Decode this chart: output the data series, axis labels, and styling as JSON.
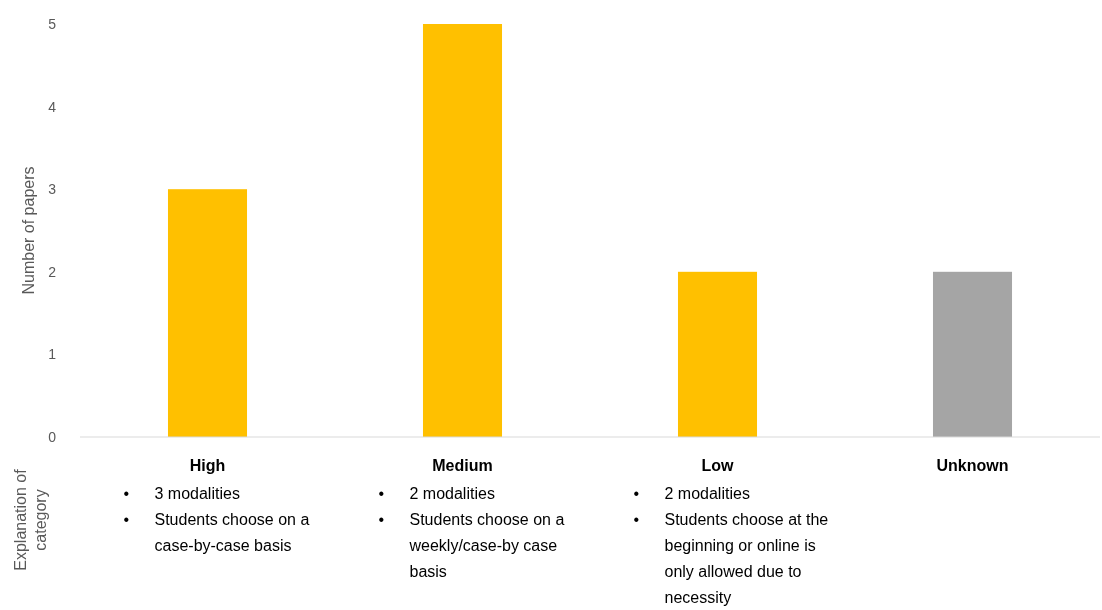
{
  "chart_data": {
    "type": "bar",
    "ylabel": "Number of papers",
    "categories": [
      "High",
      "Medium",
      "Low",
      "Unknown"
    ],
    "values": [
      3,
      5,
      2,
      2
    ],
    "colors": [
      "#ffc000",
      "#ffc000",
      "#ffc000",
      "#a5a5a5"
    ],
    "ylim": [
      0,
      5
    ],
    "yticks": [
      0,
      1,
      2,
      3,
      4,
      5
    ],
    "grid": false,
    "annotations": [
      "Explanation of category",
      "• 3 modalities",
      "• Students choose on a case-by-case basis",
      "• 2 modalities",
      "• Students choose on a weekly/case-by case basis",
      "• 2 modalities",
      "• Students choose at the beginning or online is only allowed due to necessity"
    ]
  }
}
